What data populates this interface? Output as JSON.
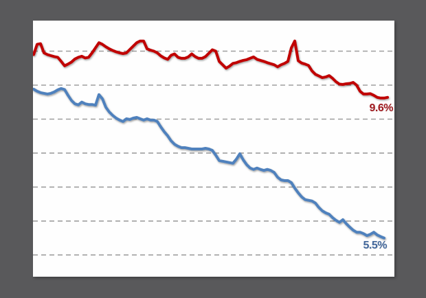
{
  "chart_data": {
    "type": "line",
    "title": "",
    "xlabel": "",
    "ylabel": "",
    "x_axis": {
      "labels_visible": false
    },
    "y_axis": {
      "unit": "%",
      "labels_visible": false,
      "min": 4.36,
      "max": 11.9,
      "gridline_values": [
        5,
        6,
        7,
        8,
        9,
        10,
        11
      ],
      "gridline_style": "dashed"
    },
    "legend_position": "none",
    "colors": {
      "background": "#59595b",
      "plot_background": "#fefefe",
      "gridline": "#9e9e9e"
    },
    "series": [
      {
        "name": "red-series",
        "color": "#c00000",
        "label_color": "#a21c21",
        "end_label": "9.6%",
        "end_value": 9.6,
        "values": [
          10.9,
          11.2,
          11.22,
          10.95,
          10.9,
          10.87,
          10.84,
          10.82,
          10.7,
          10.57,
          10.62,
          10.68,
          10.77,
          10.82,
          10.85,
          10.8,
          10.82,
          10.95,
          11.1,
          11.25,
          11.2,
          11.13,
          11.07,
          11.02,
          10.98,
          10.95,
          10.93,
          10.95,
          11.05,
          11.15,
          11.25,
          11.3,
          11.3,
          11.07,
          11.03,
          11.0,
          10.95,
          10.86,
          10.8,
          10.76,
          10.88,
          10.92,
          10.82,
          10.79,
          10.79,
          10.83,
          10.92,
          10.84,
          10.79,
          10.79,
          10.84,
          10.94,
          11.04,
          11.0,
          10.7,
          10.6,
          10.5,
          10.56,
          10.64,
          10.66,
          10.7,
          10.73,
          10.75,
          10.79,
          10.83,
          10.76,
          10.73,
          10.7,
          10.66,
          10.63,
          10.6,
          10.54,
          10.6,
          10.64,
          10.7,
          11.1,
          11.3,
          10.72,
          10.65,
          10.62,
          10.58,
          10.42,
          10.32,
          10.27,
          10.22,
          10.24,
          10.28,
          10.2,
          10.1,
          10.03,
          10.02,
          10.04,
          10.05,
          10.08,
          10.0,
          9.82,
          9.74,
          9.74,
          9.75,
          9.7,
          9.64,
          9.62,
          9.62,
          9.64
        ]
      },
      {
        "name": "blue-series",
        "color": "#4f81bd",
        "label_color": "#44699d",
        "end_label": "5.5%",
        "end_value": 5.5,
        "values": [
          9.88,
          9.82,
          9.78,
          9.76,
          9.74,
          9.76,
          9.8,
          9.86,
          9.9,
          9.87,
          9.7,
          9.55,
          9.45,
          9.42,
          9.5,
          9.45,
          9.43,
          9.43,
          9.41,
          9.72,
          9.6,
          9.35,
          9.21,
          9.11,
          9.03,
          8.97,
          8.93,
          9.01,
          8.99,
          9.03,
          9.05,
          9.01,
          8.97,
          9.01,
          8.97,
          8.97,
          8.93,
          8.77,
          8.63,
          8.51,
          8.36,
          8.26,
          8.2,
          8.16,
          8.16,
          8.14,
          8.12,
          8.12,
          8.12,
          8.12,
          8.14,
          8.12,
          8.08,
          7.94,
          7.78,
          7.76,
          7.74,
          7.72,
          7.7,
          7.82,
          7.98,
          7.8,
          7.66,
          7.56,
          7.52,
          7.56,
          7.52,
          7.49,
          7.52,
          7.49,
          7.43,
          7.29,
          7.21,
          7.19,
          7.19,
          7.13,
          6.97,
          6.83,
          6.71,
          6.63,
          6.61,
          6.59,
          6.53,
          6.4,
          6.3,
          6.24,
          6.2,
          6.1,
          6.02,
          5.96,
          6.04,
          5.92,
          5.82,
          5.73,
          5.67,
          5.67,
          5.63,
          5.57,
          5.61,
          5.67,
          5.59,
          5.54,
          5.5
        ]
      }
    ]
  }
}
